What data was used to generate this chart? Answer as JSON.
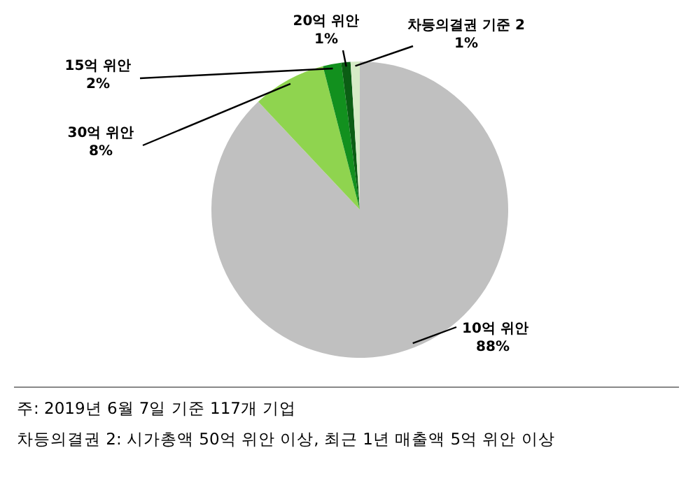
{
  "chart_data": {
    "type": "pie",
    "categories": [
      "10억 위안",
      "30억 위안",
      "15억 위안",
      "20억 위안",
      "차등의결권 기준 2"
    ],
    "values": [
      88,
      8,
      2,
      1,
      1
    ],
    "value_labels": [
      "88%",
      "8%",
      "2%",
      "1%",
      "1%"
    ],
    "colors": [
      "#c0c0c0",
      "#8fd44f",
      "#12901e",
      "#0b5e14",
      "#d6ebc6"
    ],
    "annotations": [
      "주: 2019년 6월 7일 기준 117개 기업",
      "차등의결권 2: 시가총액 50억 위안 이상, 최근 1년 매출액 5억 위안 이상"
    ]
  }
}
